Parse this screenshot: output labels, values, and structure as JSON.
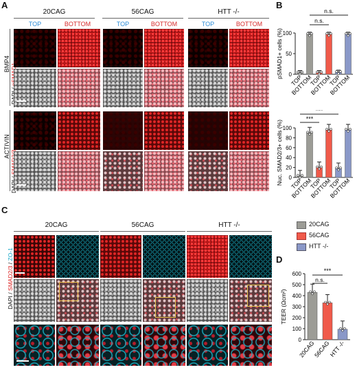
{
  "panels": {
    "A": "A",
    "B": "B",
    "C": "C",
    "D": "D"
  },
  "panelA": {
    "groups": [
      "20CAG",
      "56CAG",
      "HTT -/-"
    ],
    "sub_top": "TOP",
    "sub_bottom": "BOTTOM",
    "row_bmp4": "BMP4",
    "row_activin": "ACTIVIN",
    "lab_psmad1_dapi": "DAPI",
    "lab_psmad1": "pSMAD1",
    "lab_smad23_dapi": "DAPI",
    "lab_smad23": "SMAD2/3",
    "slash": "/"
  },
  "panelC": {
    "groups": [
      "20CAG",
      "56CAG",
      "HTT -/-"
    ],
    "lab_dapi": "DAPI",
    "lab_smad": "SMAD2/3",
    "lab_zo1": "ZO-1",
    "slash": "/"
  },
  "colors": {
    "20CAG": "#9c9c96",
    "56CAG": "#f05a4a",
    "HTT -/-": "#8a98c8",
    "red_stain": "#d22",
    "cyan_stain": "#1aa9c9",
    "box": "#e8c24a"
  },
  "legend": {
    "items": [
      "20CAG",
      "56CAG",
      "HTT -/-"
    ]
  },
  "chart_data": [
    {
      "type": "bar",
      "ylabel": "pSMAD1+ cells (%)",
      "ylim": [
        0,
        100
      ],
      "yticks": [
        "0",
        "50",
        "100"
      ],
      "categories": [
        "TOP",
        "BOTTOM",
        "TOP",
        "BOTTOM",
        "TOP",
        "BOTTOM"
      ],
      "values": [
        4,
        97,
        4,
        97,
        5,
        97
      ],
      "groups": [
        "20CAG",
        "20CAG",
        "56CAG",
        "56CAG",
        "HTT -/-",
        "HTT -/-"
      ],
      "significance": [
        "n.s.",
        "n.s."
      ]
    },
    {
      "type": "bar",
      "ylabel": "Nuc. SMAD2/3+ cells (%)",
      "ylim": [
        0,
        100
      ],
      "yticks": [
        "0",
        "20",
        "40",
        "60",
        "80",
        "100"
      ],
      "categories": [
        "TOP",
        "BOTTOM",
        "TOP",
        "BOTTOM",
        "TOP",
        "BOTTOM"
      ],
      "values": [
        3,
        90,
        20,
        96,
        18,
        96
      ],
      "groups": [
        "20CAG",
        "20CAG",
        "56CAG",
        "56CAG",
        "HTT -/-",
        "HTT -/-"
      ],
      "significance": [
        "***",
        "***"
      ]
    },
    {
      "type": "bar",
      "ylabel": "TEER (Ωcm²)",
      "ylim": [
        0,
        600
      ],
      "yticks": [
        "0",
        "100",
        "200",
        "300",
        "400",
        "500",
        "600"
      ],
      "categories": [
        "20CAG",
        "56CAG",
        "HTT -/-"
      ],
      "values": [
        430,
        335,
        95
      ],
      "significance": [
        "***",
        "n.s."
      ]
    }
  ]
}
